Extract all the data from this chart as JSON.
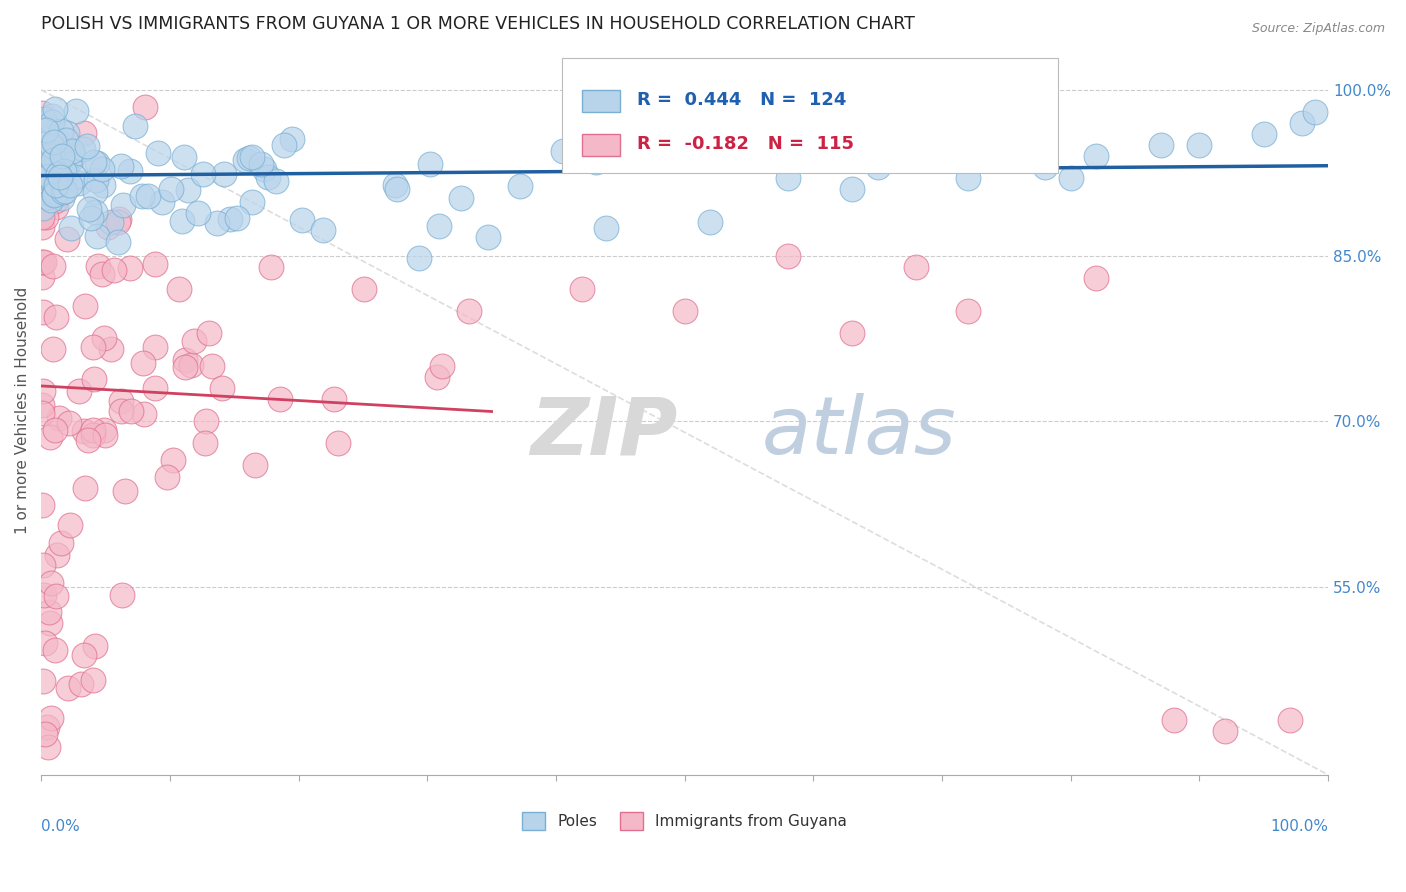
{
  "title": "POLISH VS IMMIGRANTS FROM GUYANA 1 OR MORE VEHICLES IN HOUSEHOLD CORRELATION CHART",
  "source_text": "Source: ZipAtlas.com",
  "ylabel": "1 or more Vehicles in Household",
  "legend_poles": "Poles",
  "legend_guyana": "Immigrants from Guyana",
  "r_poles": 0.444,
  "n_poles": 124,
  "r_guyana": -0.182,
  "n_guyana": 115,
  "poles_color": "#b8d4eb",
  "poles_edge_color": "#7aafd4",
  "guyana_color": "#f4b8c8",
  "guyana_edge_color": "#e07090",
  "trend_poles_color": "#2060a0",
  "trend_guyana_color": "#d04060",
  "diag_color": "#dddddd",
  "grid_color": "#cccccc",
  "title_color": "#222222",
  "axis_label_color": "#4488cc",
  "legend_r_poles_color": "#2060b0",
  "legend_r_guyana_color": "#cc2244",
  "background_color": "#ffffff",
  "xlim": [
    0.0,
    1.0
  ],
  "ylim": [
    0.38,
    1.04
  ],
  "yticks": [
    0.55,
    0.7,
    0.85,
    1.0
  ],
  "ytick_labels": [
    "55.0%",
    "70.0%",
    "85.0%",
    "100.0%"
  ]
}
